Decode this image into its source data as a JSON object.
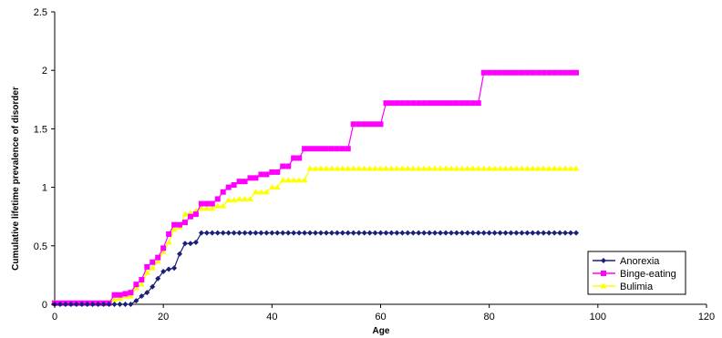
{
  "chart_data": {
    "type": "line",
    "xlabel": "Age",
    "ylabel": "Cumulative lifetime prevalence of disorder",
    "xlim": [
      0,
      120
    ],
    "ylim": [
      0,
      2.5
    ],
    "xticks": [
      "0",
      "20",
      "40",
      "60",
      "80",
      "100",
      "120"
    ],
    "yticks": [
      "0",
      "0.5",
      "1",
      "1.5",
      "2",
      "2.5"
    ],
    "grid": false,
    "legend": "bottom-right",
    "series": [
      {
        "name": "Anorexia",
        "color": "#1a1f7a",
        "marker": "diamond",
        "points": [
          [
            0,
            0
          ],
          [
            10,
            0
          ],
          [
            11,
            0
          ],
          [
            12,
            0
          ],
          [
            13,
            0
          ],
          [
            14,
            0
          ],
          [
            15,
            0.03
          ],
          [
            16,
            0.07
          ],
          [
            17,
            0.1
          ],
          [
            18,
            0.15
          ],
          [
            19,
            0.22
          ],
          [
            20,
            0.28
          ],
          [
            21,
            0.3
          ],
          [
            22,
            0.31
          ],
          [
            23,
            0.43
          ],
          [
            24,
            0.52
          ],
          [
            25,
            0.52
          ],
          [
            26,
            0.53
          ],
          [
            27,
            0.61
          ],
          [
            30,
            0.61
          ],
          [
            40,
            0.61
          ],
          [
            50,
            0.61
          ],
          [
            60,
            0.61
          ],
          [
            70,
            0.61
          ],
          [
            80,
            0.61
          ],
          [
            90,
            0.61
          ],
          [
            96,
            0.61
          ]
        ]
      },
      {
        "name": "Binge-eating",
        "color": "#ff00ff",
        "marker": "square",
        "points": [
          [
            0,
            0.01
          ],
          [
            10,
            0.01
          ],
          [
            11,
            0.08
          ],
          [
            12,
            0.08
          ],
          [
            13,
            0.09
          ],
          [
            14,
            0.1
          ],
          [
            15,
            0.17
          ],
          [
            16,
            0.21
          ],
          [
            17,
            0.32
          ],
          [
            18,
            0.36
          ],
          [
            19,
            0.4
          ],
          [
            20,
            0.48
          ],
          [
            21,
            0.6
          ],
          [
            22,
            0.68
          ],
          [
            23,
            0.68
          ],
          [
            24,
            0.7
          ],
          [
            25,
            0.75
          ],
          [
            26,
            0.77
          ],
          [
            27,
            0.86
          ],
          [
            29,
            0.86
          ],
          [
            30,
            0.9
          ],
          [
            31,
            0.96
          ],
          [
            32,
            1.0
          ],
          [
            33,
            1.02
          ],
          [
            34,
            1.05
          ],
          [
            36,
            1.08
          ],
          [
            38,
            1.11
          ],
          [
            40,
            1.13
          ],
          [
            42,
            1.18
          ],
          [
            44,
            1.25
          ],
          [
            46,
            1.33
          ],
          [
            48,
            1.33
          ],
          [
            54,
            1.33
          ],
          [
            55,
            1.54
          ],
          [
            60,
            1.54
          ],
          [
            61,
            1.72
          ],
          [
            78,
            1.72
          ],
          [
            79,
            1.98
          ],
          [
            96,
            1.98
          ]
        ]
      },
      {
        "name": "Bulimia",
        "color": "#ffff00",
        "marker": "triangle",
        "points": [
          [
            0,
            0.01
          ],
          [
            10,
            0.01
          ],
          [
            11,
            0.04
          ],
          [
            12,
            0.05
          ],
          [
            13,
            0.07
          ],
          [
            14,
            0.07
          ],
          [
            15,
            0.14
          ],
          [
            16,
            0.17
          ],
          [
            17,
            0.27
          ],
          [
            18,
            0.31
          ],
          [
            19,
            0.37
          ],
          [
            20,
            0.45
          ],
          [
            21,
            0.53
          ],
          [
            22,
            0.64
          ],
          [
            23,
            0.66
          ],
          [
            24,
            0.77
          ],
          [
            25,
            0.78
          ],
          [
            26,
            0.8
          ],
          [
            27,
            0.82
          ],
          [
            30,
            0.84
          ],
          [
            32,
            0.89
          ],
          [
            34,
            0.9
          ],
          [
            37,
            0.96
          ],
          [
            40,
            1.0
          ],
          [
            42,
            1.06
          ],
          [
            45,
            1.06
          ],
          [
            46,
            1.06
          ],
          [
            47,
            1.16
          ],
          [
            60,
            1.16
          ],
          [
            70,
            1.16
          ],
          [
            80,
            1.16
          ],
          [
            90,
            1.16
          ],
          [
            96,
            1.16
          ]
        ]
      }
    ]
  }
}
